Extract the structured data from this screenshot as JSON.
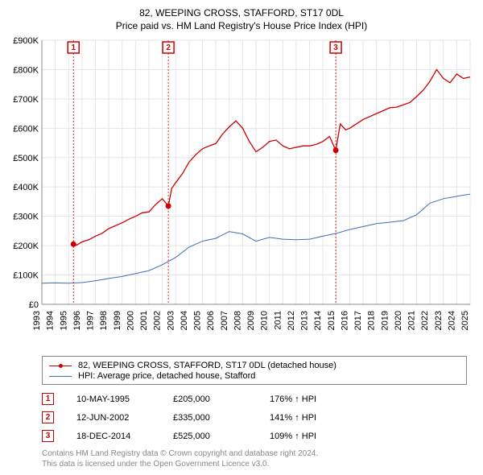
{
  "title_line1": "82, WEEPING CROSS, STAFFORD, ST17 0DL",
  "title_line2": "Price paid vs. HM Land Registry's House Price Index (HPI)",
  "chart": {
    "type": "line",
    "x_min": 1993,
    "x_max": 2025,
    "y_min": 0,
    "y_max": 900000,
    "y_ticks": [
      0,
      100000,
      200000,
      300000,
      400000,
      500000,
      600000,
      700000,
      800000,
      900000
    ],
    "y_labels": [
      "£0",
      "£100K",
      "£200K",
      "£300K",
      "£400K",
      "£500K",
      "£600K",
      "£700K",
      "£800K",
      "£900K"
    ],
    "x_ticks": [
      1993,
      1994,
      1995,
      1996,
      1997,
      1998,
      1999,
      2000,
      2001,
      2002,
      2003,
      2004,
      2005,
      2006,
      2007,
      2008,
      2009,
      2010,
      2011,
      2012,
      2013,
      2014,
      2015,
      2016,
      2017,
      2018,
      2019,
      2020,
      2021,
      2022,
      2023,
      2024,
      2025
    ],
    "plot_bg": "#ffffff",
    "grid_color": "#e5e5e5",
    "axis_color": "#888888",
    "colors": {
      "price": "#cc0000",
      "hpi": "#3b6fb6"
    },
    "series_price": [
      [
        1995.36,
        205000
      ],
      [
        1995.6,
        202000
      ],
      [
        1996.0,
        213000
      ],
      [
        1996.5,
        220000
      ],
      [
        1997.0,
        232000
      ],
      [
        1997.5,
        242000
      ],
      [
        1998.0,
        258000
      ],
      [
        1998.5,
        268000
      ],
      [
        1999.0,
        278000
      ],
      [
        1999.5,
        290000
      ],
      [
        2000.0,
        300000
      ],
      [
        2000.5,
        312000
      ],
      [
        2001.0,
        315000
      ],
      [
        2001.5,
        340000
      ],
      [
        2002.0,
        360000
      ],
      [
        2002.45,
        335000
      ],
      [
        2002.7,
        395000
      ],
      [
        2003.0,
        415000
      ],
      [
        2003.5,
        445000
      ],
      [
        2004.0,
        485000
      ],
      [
        2004.5,
        510000
      ],
      [
        2005.0,
        530000
      ],
      [
        2005.5,
        540000
      ],
      [
        2006.0,
        548000
      ],
      [
        2006.5,
        580000
      ],
      [
        2007.0,
        605000
      ],
      [
        2007.5,
        625000
      ],
      [
        2008.0,
        600000
      ],
      [
        2008.5,
        555000
      ],
      [
        2009.0,
        520000
      ],
      [
        2009.5,
        535000
      ],
      [
        2010.0,
        555000
      ],
      [
        2010.5,
        560000
      ],
      [
        2011.0,
        540000
      ],
      [
        2011.5,
        530000
      ],
      [
        2012.0,
        535000
      ],
      [
        2012.5,
        540000
      ],
      [
        2013.0,
        540000
      ],
      [
        2013.5,
        545000
      ],
      [
        2014.0,
        555000
      ],
      [
        2014.5,
        572000
      ],
      [
        2014.96,
        525000
      ],
      [
        2015.3,
        615000
      ],
      [
        2015.7,
        595000
      ],
      [
        2016.0,
        600000
      ],
      [
        2016.5,
        615000
      ],
      [
        2017.0,
        630000
      ],
      [
        2017.5,
        640000
      ],
      [
        2018.0,
        650000
      ],
      [
        2018.5,
        660000
      ],
      [
        2019.0,
        670000
      ],
      [
        2019.5,
        672000
      ],
      [
        2020.0,
        680000
      ],
      [
        2020.5,
        688000
      ],
      [
        2021.0,
        708000
      ],
      [
        2021.5,
        730000
      ],
      [
        2022.0,
        760000
      ],
      [
        2022.5,
        800000
      ],
      [
        2023.0,
        770000
      ],
      [
        2023.5,
        755000
      ],
      [
        2024.0,
        785000
      ],
      [
        2024.5,
        770000
      ],
      [
        2025.0,
        775000
      ]
    ],
    "series_hpi": [
      [
        1993.0,
        72000
      ],
      [
        1994.0,
        73000
      ],
      [
        1995.0,
        72000
      ],
      [
        1996.0,
        74000
      ],
      [
        1997.0,
        80000
      ],
      [
        1998.0,
        88000
      ],
      [
        1999.0,
        95000
      ],
      [
        2000.0,
        105000
      ],
      [
        2001.0,
        115000
      ],
      [
        2002.0,
        135000
      ],
      [
        2003.0,
        160000
      ],
      [
        2004.0,
        195000
      ],
      [
        2005.0,
        215000
      ],
      [
        2006.0,
        225000
      ],
      [
        2007.0,
        248000
      ],
      [
        2008.0,
        240000
      ],
      [
        2009.0,
        215000
      ],
      [
        2010.0,
        228000
      ],
      [
        2011.0,
        222000
      ],
      [
        2012.0,
        220000
      ],
      [
        2013.0,
        222000
      ],
      [
        2014.0,
        232000
      ],
      [
        2015.0,
        242000
      ],
      [
        2016.0,
        255000
      ],
      [
        2017.0,
        265000
      ],
      [
        2018.0,
        275000
      ],
      [
        2019.0,
        280000
      ],
      [
        2020.0,
        285000
      ],
      [
        2021.0,
        305000
      ],
      [
        2022.0,
        345000
      ],
      [
        2023.0,
        360000
      ],
      [
        2024.0,
        368000
      ],
      [
        2024.6,
        373000
      ],
      [
        2025.0,
        375000
      ]
    ],
    "sale_markers": [
      {
        "num": "1",
        "x": 1995.36,
        "y": 205000
      },
      {
        "num": "2",
        "x": 2002.45,
        "y": 335000
      },
      {
        "num": "3",
        "x": 2014.96,
        "y": 525000
      }
    ]
  },
  "legend": {
    "price_label": "82, WEEPING CROSS, STAFFORD, ST17 0DL (detached house)",
    "hpi_label": "HPI: Average price, detached house, Stafford"
  },
  "sales": [
    {
      "num": "1",
      "date": "10-MAY-1995",
      "price": "£205,000",
      "hpi": "176% ↑ HPI"
    },
    {
      "num": "2",
      "date": "12-JUN-2002",
      "price": "£335,000",
      "hpi": "141% ↑ HPI"
    },
    {
      "num": "3",
      "date": "18-DEC-2014",
      "price": "£525,000",
      "hpi": "109% ↑ HPI"
    }
  ],
  "disclaimer_line1": "Contains HM Land Registry data © Crown copyright and database right 2024.",
  "disclaimer_line2": "This data is licensed under the Open Government Licence v3.0."
}
